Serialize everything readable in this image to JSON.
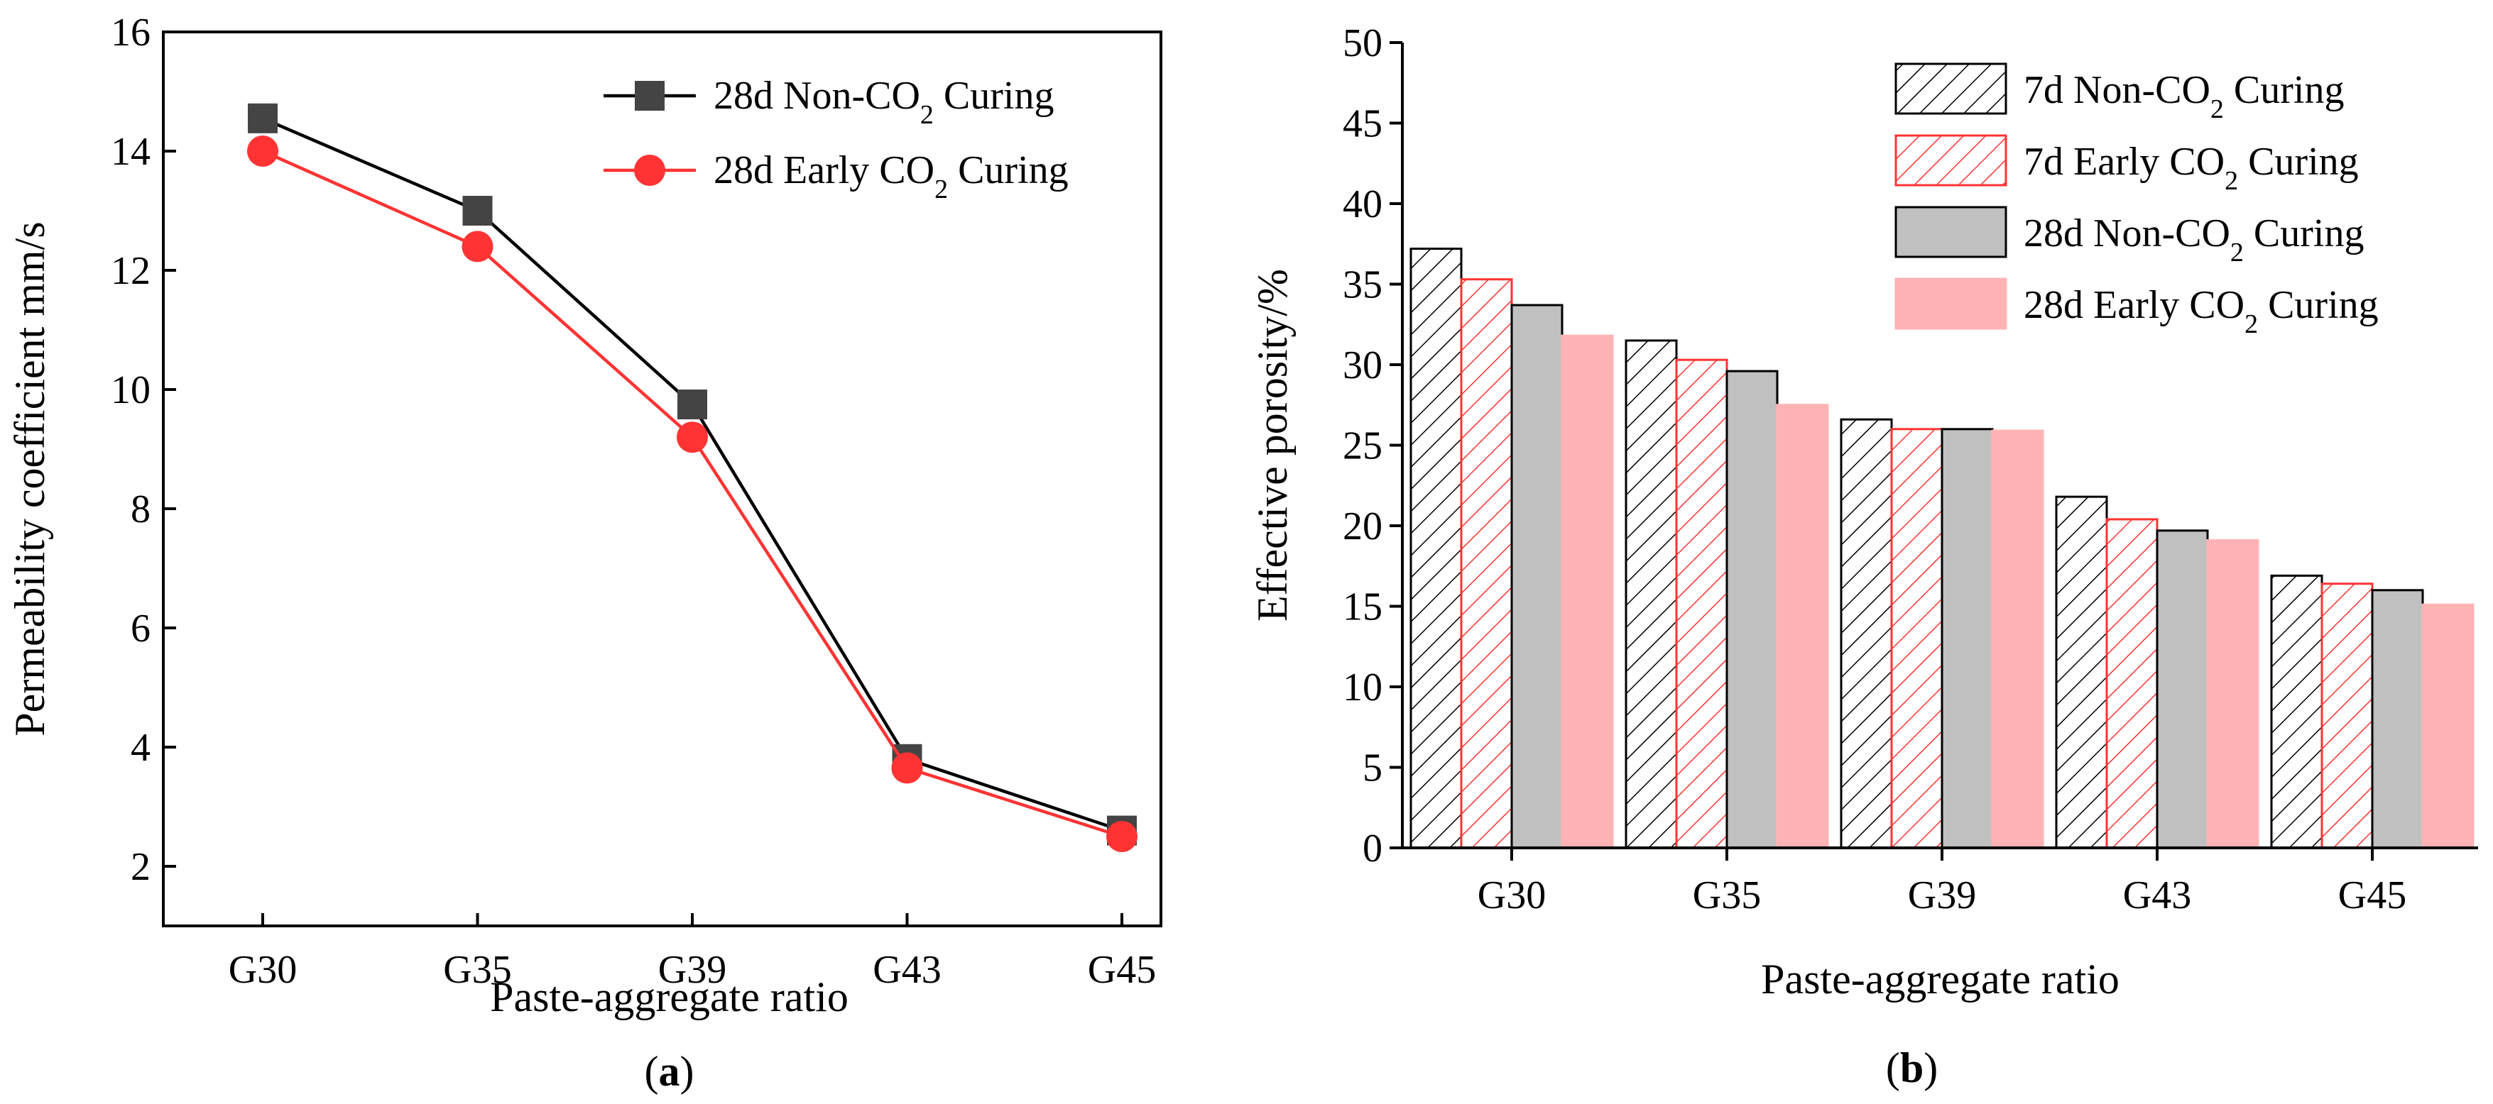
{
  "chart_data": [
    {
      "panel": "a",
      "panel_label": "a",
      "type": "line",
      "xlabel": "Paste-aggregate ratio",
      "ylabel": "Permeability coefficient mm/s",
      "ylim": [
        1,
        16
      ],
      "yticks": [
        2,
        4,
        6,
        8,
        10,
        12,
        14,
        16
      ],
      "categories": [
        "G30",
        "G35",
        "G39",
        "G43",
        "G45"
      ],
      "series": [
        {
          "name": "28d Non-CO",
          "sub": "2",
          "suffix": " Curing",
          "color": "#444444",
          "marker": "square",
          "values": [
            14.55,
            13.0,
            9.75,
            3.8,
            2.6
          ]
        },
        {
          "name": "28d Early CO",
          "sub": "2",
          "suffix": " Curing",
          "color": "#ff3333",
          "marker": "circle",
          "values": [
            14.0,
            12.4,
            9.2,
            3.65,
            2.5
          ]
        }
      ]
    },
    {
      "panel": "b",
      "panel_label": "b",
      "type": "bar",
      "xlabel": "Paste-aggregate ratio",
      "ylabel": "Effective porosity/%",
      "ylim": [
        0,
        50
      ],
      "yticks": [
        0,
        5,
        10,
        15,
        20,
        25,
        30,
        35,
        40,
        45,
        50
      ],
      "categories": [
        "G30",
        "G35",
        "G39",
        "G43",
        "G45"
      ],
      "series": [
        {
          "name": "7d Non-CO",
          "sub": "2",
          "suffix": " Curing",
          "fill": "hatch-black",
          "values": [
            37.2,
            31.5,
            26.6,
            21.8,
            16.9
          ]
        },
        {
          "name": "7d Early CO",
          "sub": "2",
          "suffix": " Curing",
          "fill": "hatch-red",
          "values": [
            35.3,
            30.3,
            26.0,
            20.4,
            16.4
          ]
        },
        {
          "name": "28d Non-CO",
          "sub": "2",
          "suffix": " Curing",
          "fill": "#c0c0c0",
          "values": [
            33.7,
            29.6,
            26.0,
            19.7,
            16.0
          ]
        },
        {
          "name": "28d Early CO",
          "sub": "2",
          "suffix": " Curing",
          "fill": "#ffb3b5",
          "values": [
            31.8,
            27.5,
            25.9,
            19.1,
            15.1
          ]
        }
      ]
    }
  ]
}
